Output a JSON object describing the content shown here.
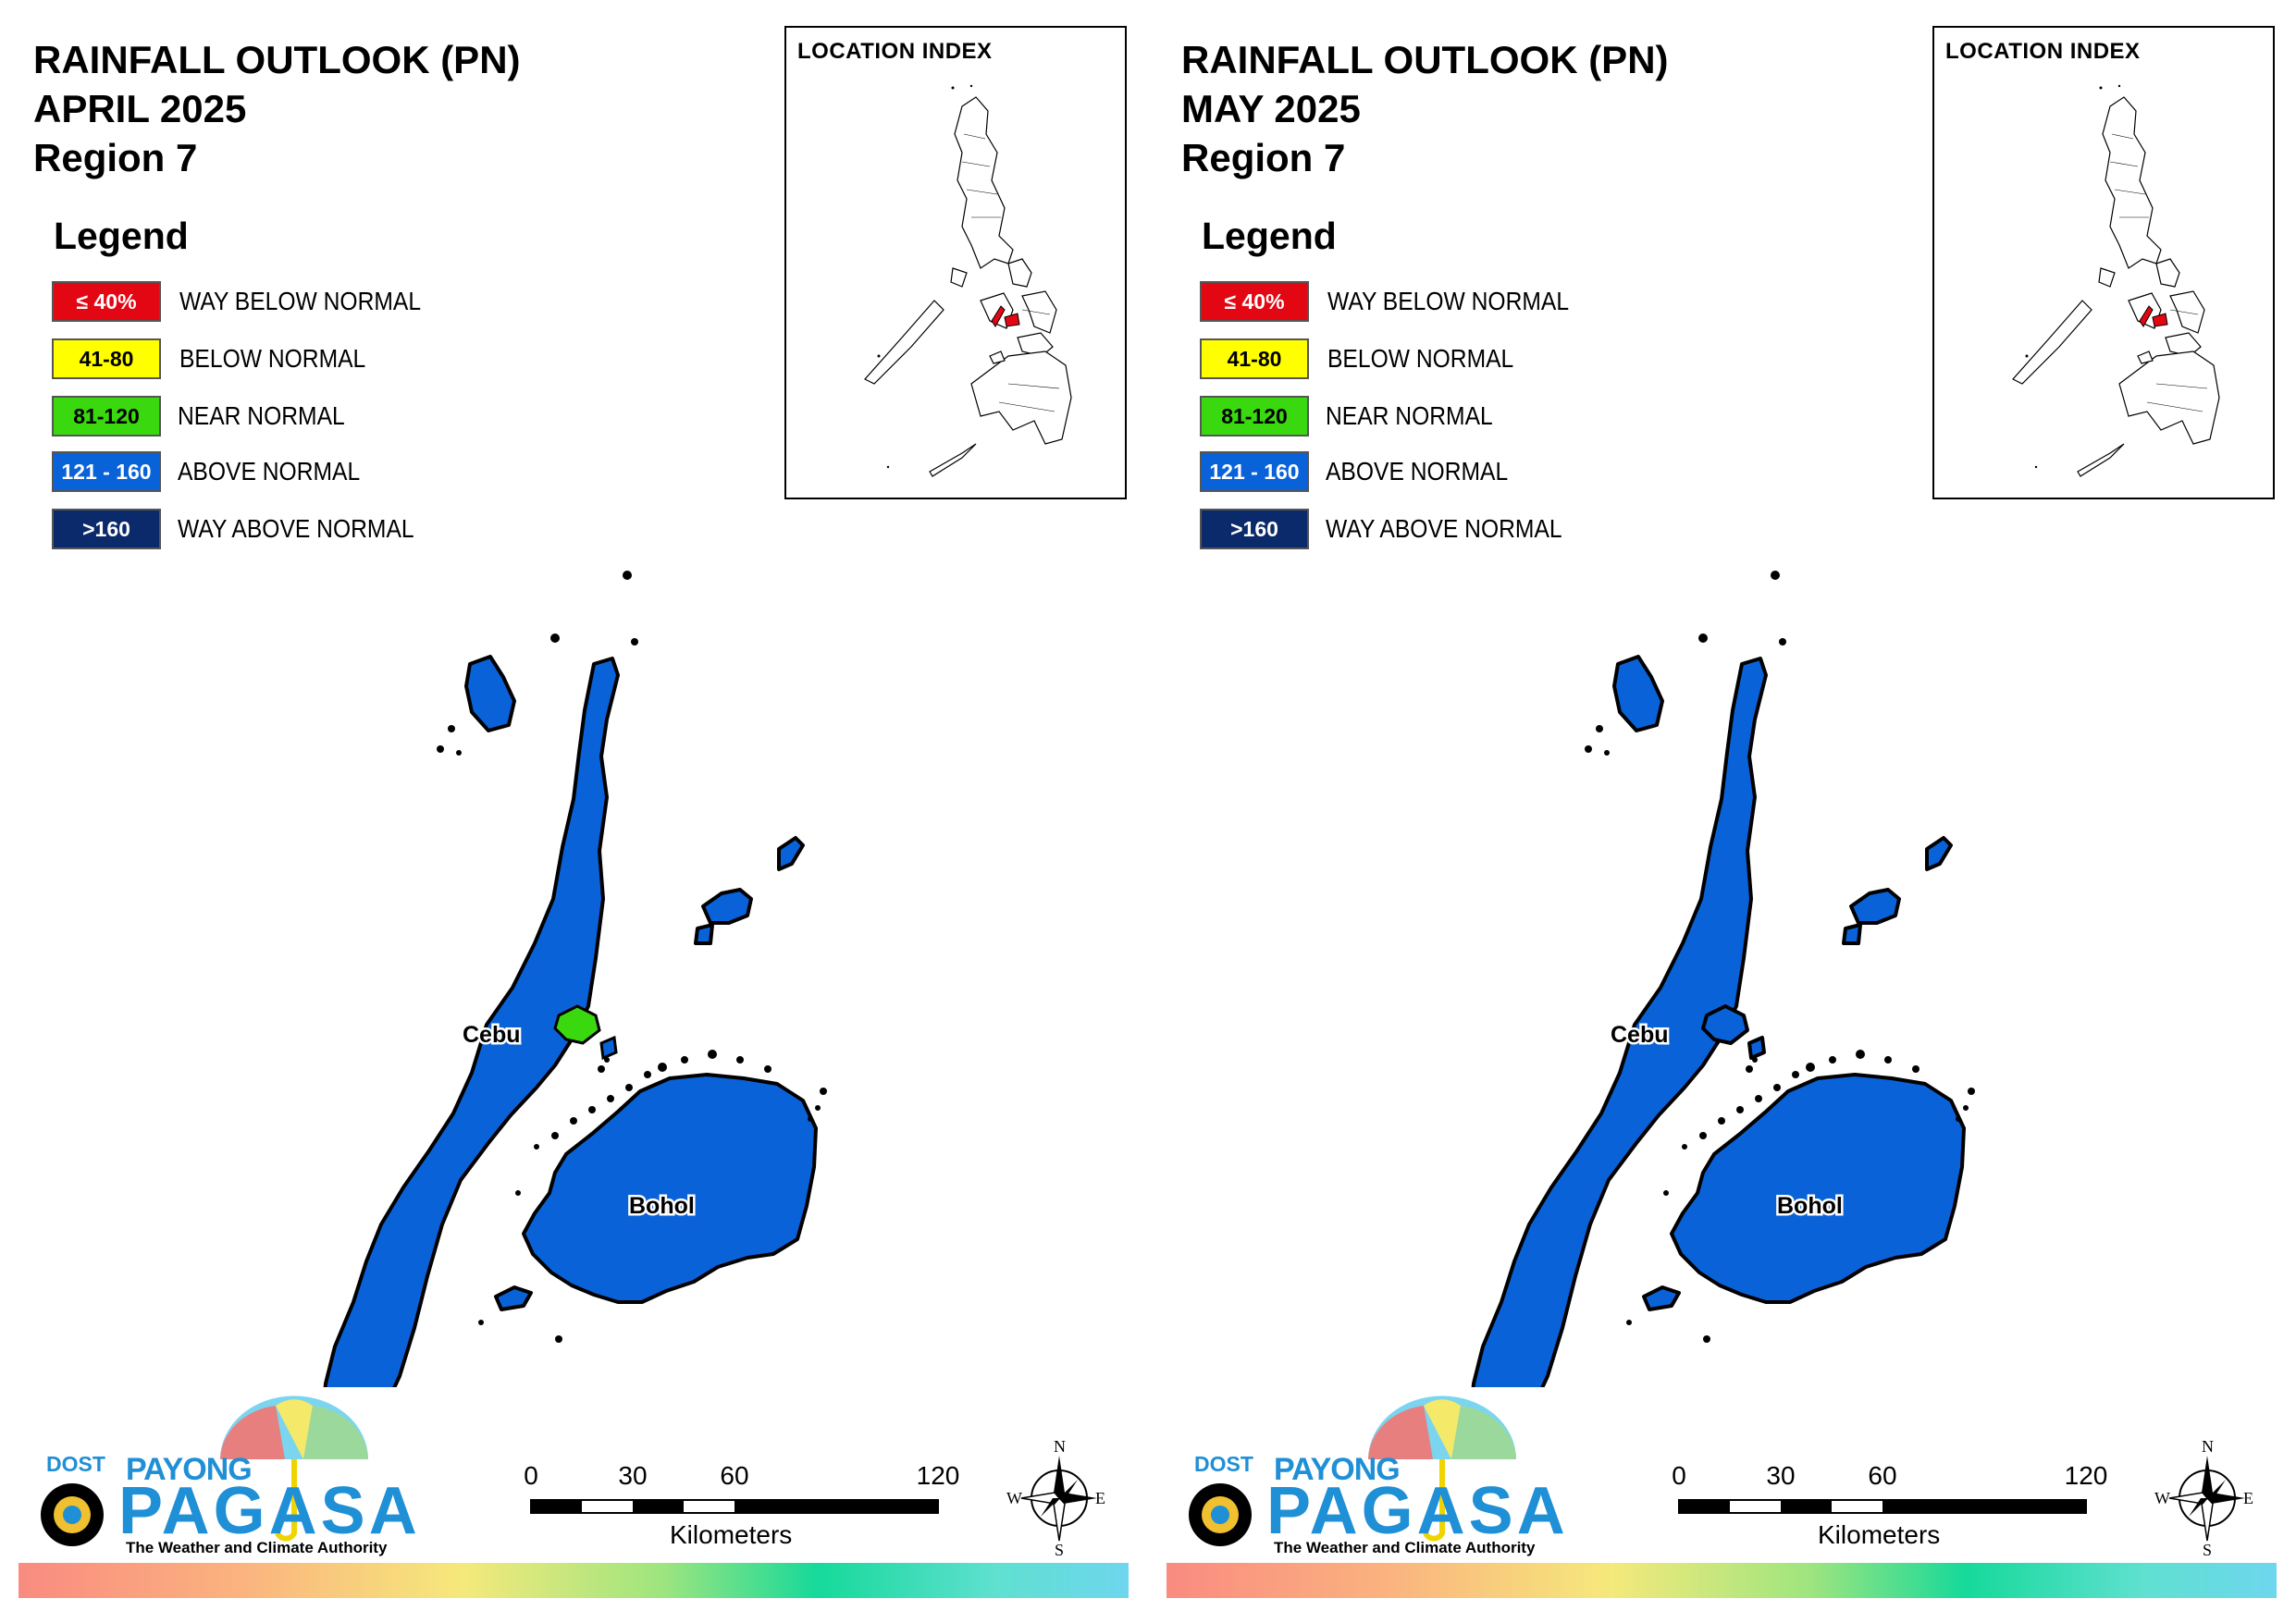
{
  "panels": [
    {
      "title": [
        "RAINFALL OUTLOOK (PN)",
        "APRIL 2025",
        "Region 7"
      ],
      "highlight": "near-normal-area-cebu"
    },
    {
      "title": [
        "RAINFALL OUTLOOK (PN)",
        "MAY 2025",
        "Region 7"
      ],
      "highlight": "none"
    }
  ],
  "legend": {
    "title": "Legend",
    "items": [
      {
        "range": "≤ 40%",
        "label": "WAY BELOW NORMAL",
        "color": "#e30613",
        "text_color": "#ffffff"
      },
      {
        "range": "41-80",
        "label": "BELOW NORMAL",
        "color": "#ffff00",
        "text_color": "#000000"
      },
      {
        "range": "81-120",
        "label": "NEAR NORMAL",
        "color": "#3ad80f",
        "text_color": "#000000"
      },
      {
        "range": "121 - 160",
        "label": "ABOVE NORMAL",
        "color": "#0a62d9",
        "text_color": "#ffffff"
      },
      {
        "range": ">160",
        "label": "WAY ABOVE NORMAL",
        "color": "#0b2a6b",
        "text_color": "#ffffff"
      }
    ]
  },
  "location_index": {
    "title": "LOCATION INDEX"
  },
  "map": {
    "labels": {
      "cebu": "Cebu",
      "bohol": "Bohol"
    },
    "fill_color": "#0a62d9",
    "near_normal_color": "#3ad80f",
    "highlight_color": "#e30613"
  },
  "logo": {
    "dost": "DOST",
    "payong": "PAYONG",
    "pagasa": "PAGASA",
    "tagline": "The Weather and Climate Authority"
  },
  "scale_bar": {
    "ticks": [
      "0",
      "30",
      "60",
      "120"
    ],
    "unit": "Kilometers"
  },
  "compass": {
    "n": "N",
    "s": "S",
    "e": "E",
    "w": "W"
  }
}
